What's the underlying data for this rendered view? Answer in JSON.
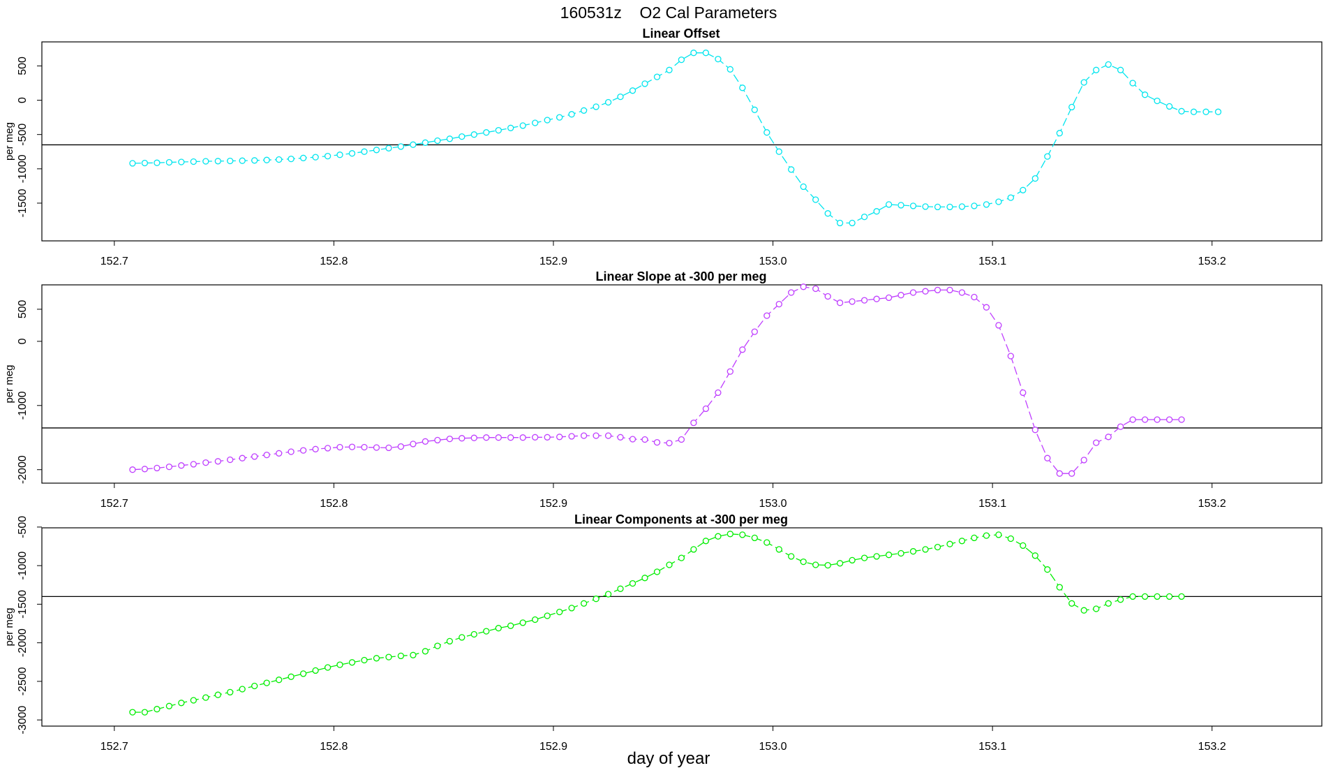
{
  "figure": {
    "title": "160531z    O2 Cal Parameters",
    "xlabel": "day of year"
  },
  "chart_data": [
    {
      "type": "scatter",
      "title": "Linear Offset",
      "xlabel": "",
      "ylabel": "per meg",
      "xlim": [
        152.667,
        153.25
      ],
      "ylim": [
        -2050,
        850
      ],
      "xticks": [
        "152.7",
        "152.8",
        "152.9",
        "153.0",
        "153.1",
        "153.2"
      ],
      "yticks": [
        {
          "value": 500,
          "label": "500"
        },
        {
          "value": 0,
          "label": "0"
        },
        {
          "value": -500,
          "label": "-500"
        },
        {
          "value": -1000,
          "label": "-1000"
        },
        {
          "value": -1500,
          "label": "-1500"
        }
      ],
      "hline": -650,
      "color": "#00e5ee",
      "x_start": 152.7083,
      "x_step": 0.005556,
      "values": [
        -920,
        -915,
        -912,
        -905,
        -900,
        -895,
        -890,
        -888,
        -885,
        -882,
        -878,
        -872,
        -865,
        -855,
        -842,
        -830,
        -815,
        -795,
        -775,
        -750,
        -725,
        -700,
        -675,
        -648,
        -618,
        -590,
        -562,
        -530,
        -500,
        -470,
        -438,
        -405,
        -370,
        -330,
        -290,
        -250,
        -205,
        -150,
        -95,
        -30,
        50,
        140,
        240,
        340,
        440,
        590,
        690,
        690,
        600,
        450,
        180,
        -140,
        -470,
        -750,
        -1010,
        -1260,
        -1450,
        -1650,
        -1790,
        -1790,
        -1700,
        -1620,
        -1520,
        -1530,
        -1540,
        -1550,
        -1555,
        -1555,
        -1550,
        -1540,
        -1520,
        -1480,
        -1420,
        -1310,
        -1140,
        -820,
        -480,
        -100,
        260,
        440,
        520,
        440,
        250,
        80,
        -10,
        -90,
        -160,
        -170,
        -170,
        -170
      ]
    },
    {
      "type": "scatter",
      "title": "Linear Slope at -300 per meg",
      "xlabel": "",
      "ylabel": "per meg",
      "xlim": [
        152.667,
        153.25
      ],
      "ylim": [
        -2210,
        880
      ],
      "xticks": [
        "152.7",
        "152.8",
        "152.9",
        "153.0",
        "153.1",
        "153.2"
      ],
      "yticks": [
        {
          "value": 500,
          "label": "500"
        },
        {
          "value": 0,
          "label": "0"
        },
        {
          "value": -1000,
          "label": "-1000"
        },
        {
          "value": -2000,
          "label": "-2000"
        }
      ],
      "hline": -1350,
      "color": "#bf3eff",
      "x_start": 152.7083,
      "x_step": 0.005556,
      "values": [
        -2000,
        -1990,
        -1975,
        -1955,
        -1935,
        -1915,
        -1890,
        -1870,
        -1845,
        -1820,
        -1795,
        -1770,
        -1745,
        -1720,
        -1700,
        -1680,
        -1665,
        -1650,
        -1645,
        -1650,
        -1655,
        -1660,
        -1640,
        -1600,
        -1560,
        -1540,
        -1520,
        -1510,
        -1505,
        -1500,
        -1500,
        -1500,
        -1500,
        -1495,
        -1495,
        -1490,
        -1480,
        -1470,
        -1470,
        -1470,
        -1495,
        -1525,
        -1530,
        -1575,
        -1585,
        -1530,
        -1270,
        -1050,
        -800,
        -470,
        -130,
        150,
        400,
        580,
        760,
        850,
        820,
        700,
        600,
        620,
        640,
        660,
        680,
        720,
        760,
        780,
        800,
        800,
        760,
        690,
        530,
        250,
        -230,
        -800,
        -1380,
        -1820,
        -2060,
        -2060,
        -1850,
        -1580,
        -1490,
        -1330,
        -1220,
        -1220,
        -1220,
        -1220,
        -1220
      ]
    },
    {
      "type": "scatter",
      "title": "Linear Components at -300 per meg",
      "xlabel": "",
      "ylabel": "per meg",
      "xlim": [
        152.667,
        153.25
      ],
      "ylim": [
        -3080,
        -510
      ],
      "xticks": [
        "152.7",
        "152.8",
        "152.9",
        "153.0",
        "153.1",
        "153.2"
      ],
      "yticks": [
        {
          "value": -500,
          "label": "-500"
        },
        {
          "value": -1000,
          "label": "-1000"
        },
        {
          "value": -1500,
          "label": "-1500"
        },
        {
          "value": -2000,
          "label": "-2000"
        },
        {
          "value": -2500,
          "label": "-2500"
        },
        {
          "value": -3000,
          "label": "-3000"
        }
      ],
      "hline": -1400,
      "color": "#00ee00",
      "x_start": 152.7083,
      "x_step": 0.005556,
      "values": [
        -2900,
        -2900,
        -2860,
        -2820,
        -2780,
        -2745,
        -2710,
        -2675,
        -2640,
        -2600,
        -2560,
        -2520,
        -2480,
        -2440,
        -2400,
        -2360,
        -2320,
        -2285,
        -2255,
        -2225,
        -2200,
        -2185,
        -2170,
        -2160,
        -2110,
        -2040,
        -1980,
        -1930,
        -1890,
        -1850,
        -1810,
        -1780,
        -1740,
        -1700,
        -1650,
        -1600,
        -1550,
        -1490,
        -1430,
        -1370,
        -1300,
        -1230,
        -1160,
        -1080,
        -990,
        -900,
        -790,
        -680,
        -620,
        -590,
        -600,
        -640,
        -700,
        -790,
        -880,
        -950,
        -990,
        -995,
        -970,
        -930,
        -900,
        -880,
        -860,
        -840,
        -815,
        -790,
        -760,
        -720,
        -680,
        -640,
        -610,
        -600,
        -650,
        -740,
        -870,
        -1050,
        -1280,
        -1490,
        -1580,
        -1560,
        -1490,
        -1440,
        -1400,
        -1400,
        -1400,
        -1400,
        -1400
      ]
    }
  ]
}
